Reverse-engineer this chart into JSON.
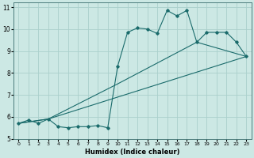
{
  "xlabel": "Humidex (Indice chaleur)",
  "xlim": [
    -0.5,
    23.5
  ],
  "ylim": [
    5,
    11.2
  ],
  "yticks": [
    5,
    6,
    7,
    8,
    9,
    10,
    11
  ],
  "xticks": [
    0,
    1,
    2,
    3,
    4,
    5,
    6,
    7,
    8,
    9,
    10,
    11,
    12,
    13,
    14,
    15,
    16,
    17,
    18,
    19,
    20,
    21,
    22,
    23
  ],
  "bg_color": "#cce8e4",
  "grid_color": "#aad0cc",
  "line_color": "#1a6b6b",
  "line1_x": [
    0,
    1,
    2,
    3,
    4,
    5,
    6,
    7,
    8,
    9,
    10,
    11,
    12,
    13,
    14,
    15,
    16,
    17,
    18,
    19,
    20,
    21,
    22,
    23
  ],
  "line1_y": [
    5.7,
    5.85,
    5.7,
    5.9,
    5.55,
    5.5,
    5.55,
    5.55,
    5.6,
    5.5,
    8.3,
    9.85,
    10.05,
    10.0,
    9.8,
    10.85,
    10.6,
    10.85,
    9.4,
    9.85,
    9.85,
    9.85,
    9.4,
    8.75
  ],
  "line2_x": [
    0,
    3,
    23
  ],
  "line2_y": [
    5.7,
    5.9,
    8.75
  ],
  "line3_x": [
    0,
    3,
    10,
    18,
    23
  ],
  "line3_y": [
    5.7,
    5.9,
    7.5,
    9.4,
    8.75
  ]
}
